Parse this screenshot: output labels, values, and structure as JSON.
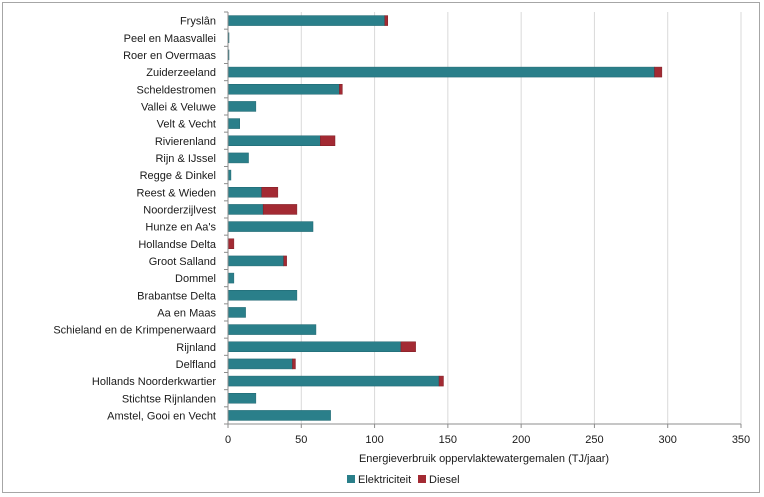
{
  "colors": {
    "elektriciteit": "#2a7f8a",
    "diesel": "#a32a33",
    "axis": "#8c8c8c",
    "grid": "#d9d9d9"
  },
  "chart_data": {
    "type": "bar",
    "orientation": "horizontal",
    "stacked": true,
    "title": "",
    "xlabel": "Energieverbruik oppervlaktewatergemalen (TJ/jaar)",
    "ylabel": "",
    "xlim": [
      0,
      350
    ],
    "xticks": [
      0,
      50,
      100,
      150,
      200,
      250,
      300,
      350
    ],
    "grid": true,
    "legend_position": "bottom",
    "categories": [
      "Fryslân",
      "Peel en Maasvallei",
      "Roer en Overmaas",
      "Zuiderzeeland",
      "Scheldestromen",
      "Vallei & Veluwe",
      "Velt & Vecht",
      "Rivierenland",
      "Rijn & IJssel",
      "Regge & Dinkel",
      "Reest & Wieden",
      "Noorderzijlvest",
      "Hunze en Aa's",
      "Hollandse Delta",
      "Groot Salland",
      "Dommel",
      "Brabantse Delta",
      "Aa en Maas",
      "Schieland en de Krimpenerwaard",
      "Rijnland",
      "Delfland",
      "Hollands Noorderkwartier",
      "Stichtse Rijnlanden",
      "Amstel, Gooi en Vecht"
    ],
    "series": [
      {
        "name": "Elektriciteit",
        "values": [
          107,
          0.5,
          0.5,
          291,
          76,
          19,
          8,
          63,
          14,
          2,
          23,
          24,
          58,
          0,
          38,
          4,
          47,
          12,
          60,
          118,
          44,
          144,
          19,
          70
        ]
      },
      {
        "name": "Diesel",
        "values": [
          2,
          0,
          0,
          5,
          2,
          0,
          0,
          10,
          0,
          0,
          11,
          23,
          0,
          4,
          2,
          0,
          0,
          0,
          0,
          10,
          2,
          3,
          0,
          0
        ]
      }
    ]
  }
}
